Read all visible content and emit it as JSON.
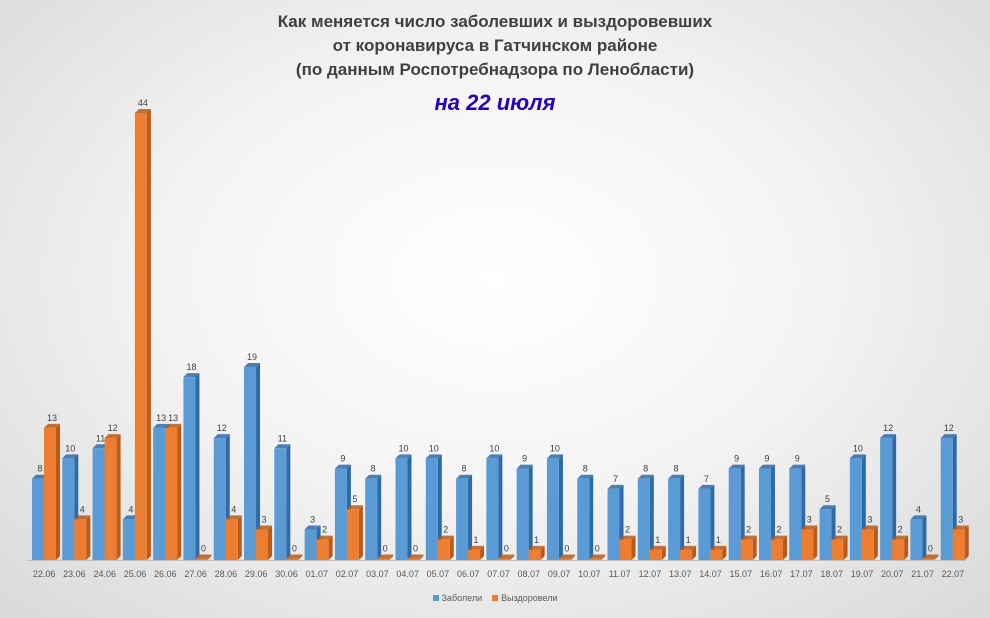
{
  "header": {
    "title_line1": "Как меняется число  заболевших и выздоровевших",
    "title_line2": "от коронавируса в Гатчинском районе",
    "title_line3": "(по данным Роспотребнадзора по Ленобласти)",
    "subtitle": "на 22 июля"
  },
  "colors": {
    "series1": "#5b9bd5",
    "series1_dark": "#2e6aa8",
    "series2": "#ed7d31",
    "series2_dark": "#b85a1a",
    "axis": "#bfbfbf",
    "label": "#404040"
  },
  "chart_data": {
    "type": "bar",
    "title": "Как меняется число  заболевших и выздоровевших от коронавируса в Гатчинском районе (по данным Роспотребнадзора по Ленобласти)",
    "subtitle": "на 22 июля",
    "categories": [
      "22.06",
      "23.06",
      "24.06",
      "25.06",
      "26.06",
      "27.06",
      "28.06",
      "29.06",
      "30.06",
      "01.07",
      "02.07",
      "03.07",
      "04.07",
      "05.07",
      "06.07",
      "07.07",
      "08.07",
      "09.07",
      "10.07",
      "11.07",
      "12.07",
      "13.07",
      "14.07",
      "15.07",
      "16.07",
      "17.07",
      "18.07",
      "19.07",
      "20.07",
      "21.07",
      "22.07"
    ],
    "series": [
      {
        "name": "Заболели",
        "values": [
          8,
          10,
          11,
          4,
          13,
          18,
          12,
          19,
          11,
          3,
          9,
          8,
          10,
          10,
          8,
          10,
          9,
          10,
          8,
          7,
          8,
          8,
          7,
          9,
          9,
          9,
          5,
          10,
          12,
          4,
          12
        ]
      },
      {
        "name": "Выздоровели",
        "values": [
          13,
          4,
          12,
          44,
          13,
          0,
          4,
          3,
          0,
          2,
          5,
          0,
          0,
          2,
          1,
          0,
          1,
          0,
          0,
          2,
          1,
          1,
          1,
          2,
          2,
          3,
          2,
          3,
          2,
          0,
          3
        ]
      }
    ],
    "ylim": [
      0,
      46
    ],
    "grid": false,
    "legend": "bottom-center",
    "data_labels": true
  }
}
